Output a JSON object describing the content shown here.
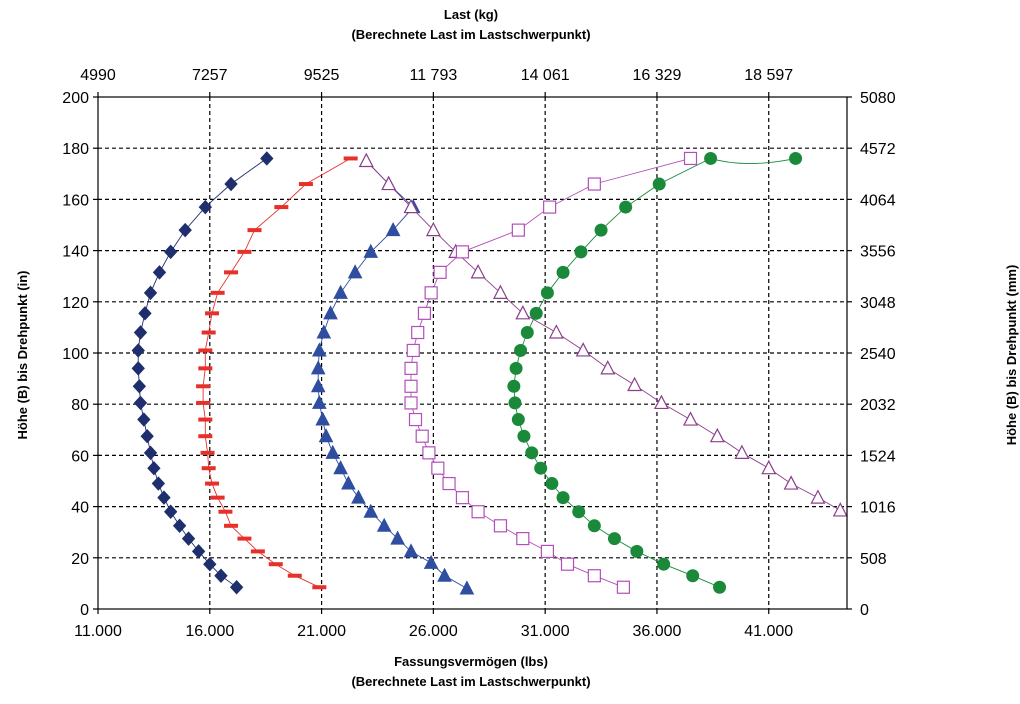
{
  "chart_data": {
    "type": "scatter",
    "top_title": [
      "Last (kg)",
      "(Berechnete Last im Lastschwerpunkt)"
    ],
    "bottom_title": [
      "Fassungsvermögen (lbs)",
      "(Berechnete Last im Lastschwerpunkt)"
    ],
    "ylabel_left": "Höhe (B) bis Drehpunkt (in)",
    "ylabel_right": "Höhe (B) bis Drehpunkt (mm)",
    "xlim": [
      11000,
      44500
    ],
    "ylim": [
      0,
      200
    ],
    "x_ticks_bottom": [
      {
        "v": 11000,
        "label": "11.000"
      },
      {
        "v": 16000,
        "label": "16.000"
      },
      {
        "v": 21000,
        "label": "21.000"
      },
      {
        "v": 26000,
        "label": "26.000"
      },
      {
        "v": 31000,
        "label": "31.000"
      },
      {
        "v": 36000,
        "label": "36.000"
      },
      {
        "v": 41000,
        "label": "41.000"
      }
    ],
    "x_ticks_top": [
      {
        "v": 11000,
        "label": "4990"
      },
      {
        "v": 16000,
        "label": "7257"
      },
      {
        "v": 21000,
        "label": "9525"
      },
      {
        "v": 26000,
        "label": "11 793"
      },
      {
        "v": 31000,
        "label": "14 061"
      },
      {
        "v": 36000,
        "label": "16 329"
      },
      {
        "v": 41000,
        "label": "18 597"
      }
    ],
    "y_ticks_left": [
      {
        "v": 0,
        "label": "0"
      },
      {
        "v": 20,
        "label": "20"
      },
      {
        "v": 40,
        "label": "40"
      },
      {
        "v": 60,
        "label": "60"
      },
      {
        "v": 80,
        "label": "80"
      },
      {
        "v": 100,
        "label": "100"
      },
      {
        "v": 120,
        "label": "120"
      },
      {
        "v": 140,
        "label": "140"
      },
      {
        "v": 160,
        "label": "160"
      },
      {
        "v": 180,
        "label": "180"
      },
      {
        "v": 200,
        "label": "200"
      }
    ],
    "y_ticks_right": [
      {
        "v": 0,
        "label": "0"
      },
      {
        "v": 20,
        "label": "508"
      },
      {
        "v": 40,
        "label": "1016"
      },
      {
        "v": 60,
        "label": "1524"
      },
      {
        "v": 80,
        "label": "2032"
      },
      {
        "v": 100,
        "label": "2540"
      },
      {
        "v": 120,
        "label": "3048"
      },
      {
        "v": 140,
        "label": "3556"
      },
      {
        "v": 160,
        "label": "4064"
      },
      {
        "v": 180,
        "label": "4572"
      },
      {
        "v": 200,
        "label": "5080"
      }
    ],
    "grid": true,
    "series": [
      {
        "marker": "diamond",
        "color": "#1f2f6e",
        "fill": "#1f2f6e",
        "points": [
          [
            17200,
            8.5
          ],
          [
            16500,
            13
          ],
          [
            16000,
            17.5
          ],
          [
            15500,
            22.5
          ],
          [
            15050,
            27.5
          ],
          [
            14650,
            32.5
          ],
          [
            14250,
            38
          ],
          [
            13950,
            43.5
          ],
          [
            13700,
            49
          ],
          [
            13500,
            55
          ],
          [
            13350,
            61
          ],
          [
            13200,
            67.5
          ],
          [
            13050,
            74
          ],
          [
            12900,
            80.5
          ],
          [
            12850,
            87
          ],
          [
            12800,
            94
          ],
          [
            12800,
            101
          ],
          [
            12900,
            108
          ],
          [
            13100,
            115.5
          ],
          [
            13350,
            123.5
          ],
          [
            13750,
            131.5
          ],
          [
            14250,
            139.5
          ],
          [
            14900,
            148
          ],
          [
            15800,
            157
          ],
          [
            16950,
            166
          ],
          [
            18550,
            176
          ]
        ]
      },
      {
        "marker": "dash",
        "color": "#e8302a",
        "fill": "#e8302a",
        "points": [
          [
            20900,
            8.5
          ],
          [
            19800,
            13
          ],
          [
            18950,
            17.5
          ],
          [
            18150,
            22.5
          ],
          [
            17550,
            27.5
          ],
          [
            16950,
            32.5
          ],
          [
            16700,
            38
          ],
          [
            16350,
            43.5
          ],
          [
            16100,
            49
          ],
          [
            15950,
            55
          ],
          [
            15900,
            61
          ],
          [
            15800,
            67.5
          ],
          [
            15800,
            74
          ],
          [
            15700,
            80.5
          ],
          [
            15700,
            87
          ],
          [
            15800,
            94
          ],
          [
            15800,
            101
          ],
          [
            15950,
            108
          ],
          [
            16100,
            115.5
          ],
          [
            16350,
            123.5
          ],
          [
            16950,
            131.5
          ],
          [
            17550,
            139.5
          ],
          [
            18000,
            148
          ],
          [
            19200,
            157
          ],
          [
            20300,
            166
          ],
          [
            22300,
            176
          ]
        ]
      },
      {
        "marker": "triangle",
        "color": "#2f4ea0",
        "fill": "#2f4ea0",
        "points": [
          [
            27500,
            8
          ],
          [
            26500,
            13
          ],
          [
            25900,
            18
          ],
          [
            25000,
            22.5
          ],
          [
            24400,
            27.5
          ],
          [
            23800,
            32.5
          ],
          [
            23200,
            38
          ],
          [
            22650,
            43.5
          ],
          [
            22200,
            49
          ],
          [
            21850,
            55
          ],
          [
            21500,
            61
          ],
          [
            21200,
            67.5
          ],
          [
            21050,
            74
          ],
          [
            20900,
            80.5
          ],
          [
            20850,
            87
          ],
          [
            20850,
            94
          ],
          [
            20900,
            101
          ],
          [
            21100,
            108
          ],
          [
            21400,
            115.5
          ],
          [
            21850,
            123.5
          ],
          [
            22500,
            131.5
          ],
          [
            23200,
            139.5
          ],
          [
            24200,
            148
          ],
          [
            25100,
            157
          ],
          [
            24000,
            166
          ],
          [
            23000,
            175
          ]
        ]
      },
      {
        "marker": "triangle-open",
        "color": "#8a3f8a",
        "fill": "none",
        "points": [
          [
            23000,
            175
          ],
          [
            24000,
            166
          ],
          [
            25000,
            157
          ],
          [
            26000,
            148
          ],
          [
            27000,
            139.5
          ],
          [
            28000,
            131.5
          ],
          [
            29000,
            123.5
          ],
          [
            30000,
            115.5
          ],
          [
            31500,
            108
          ],
          [
            32700,
            101
          ],
          [
            33800,
            94
          ],
          [
            35000,
            87.5
          ],
          [
            36200,
            80.5
          ],
          [
            37500,
            74
          ],
          [
            38700,
            67.5
          ],
          [
            39800,
            61
          ],
          [
            41000,
            55
          ],
          [
            42000,
            49
          ],
          [
            43200,
            43.5
          ],
          [
            44200,
            38.5
          ]
        ]
      },
      {
        "marker": "square-open",
        "color": "#b24fb8",
        "fill": "none",
        "points": [
          [
            34500,
            8.5
          ],
          [
            33200,
            13
          ],
          [
            32000,
            17.5
          ],
          [
            31100,
            22.5
          ],
          [
            30000,
            27.5
          ],
          [
            29000,
            32.5
          ],
          [
            28000,
            38
          ],
          [
            27300,
            43.5
          ],
          [
            26700,
            49
          ],
          [
            26200,
            55
          ],
          [
            25800,
            61
          ],
          [
            25500,
            67.5
          ],
          [
            25200,
            74
          ],
          [
            25000,
            80.5
          ],
          [
            25000,
            87
          ],
          [
            25000,
            94
          ],
          [
            25100,
            101
          ],
          [
            25300,
            108
          ],
          [
            25600,
            115.5
          ],
          [
            25900,
            123.5
          ],
          [
            26300,
            131.5
          ],
          [
            27300,
            139.5
          ],
          [
            29800,
            148
          ],
          [
            31200,
            157
          ],
          [
            33200,
            166
          ],
          [
            37500,
            176
          ]
        ]
      },
      {
        "marker": "circle",
        "color": "#1a8a3a",
        "fill": "#1a8a3a",
        "points": [
          [
            38800,
            8.5
          ],
          [
            37600,
            13
          ],
          [
            36300,
            17.5
          ],
          [
            35100,
            22.5
          ],
          [
            34100,
            27.5
          ],
          [
            33200,
            32.5
          ],
          [
            32500,
            38
          ],
          [
            31800,
            43.5
          ],
          [
            31300,
            49
          ],
          [
            30800,
            55
          ],
          [
            30400,
            61
          ],
          [
            30050,
            67.5
          ],
          [
            29800,
            74
          ],
          [
            29650,
            80.5
          ],
          [
            29600,
            87
          ],
          [
            29700,
            94
          ],
          [
            29900,
            101
          ],
          [
            30200,
            108
          ],
          [
            30600,
            115.5
          ],
          [
            31100,
            123.5
          ],
          [
            31800,
            131.5
          ],
          [
            32600,
            139.5
          ],
          [
            33500,
            148
          ],
          [
            34600,
            157
          ],
          [
            36100,
            166
          ],
          [
            38400,
            176
          ],
          [
            42200,
            176
          ]
        ]
      }
    ]
  }
}
